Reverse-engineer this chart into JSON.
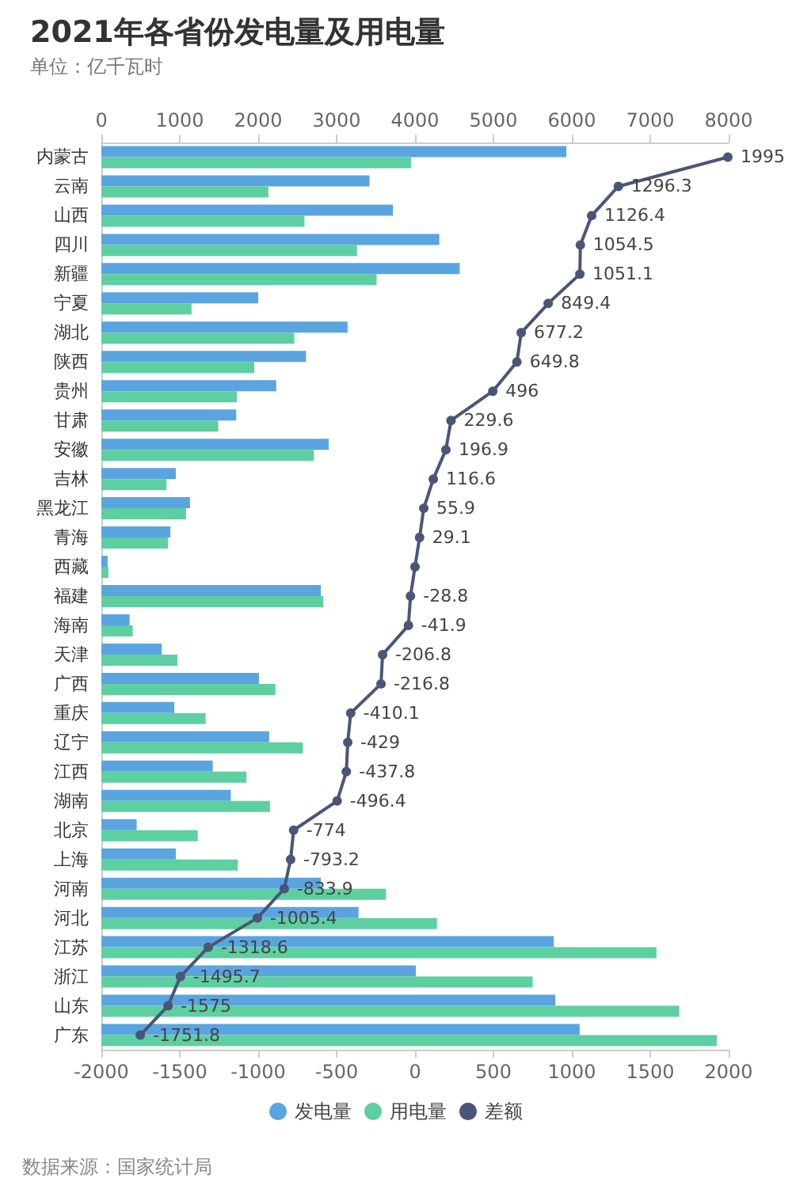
{
  "chart_data": {
    "type": "bar",
    "orientation": "horizontal",
    "title": "2021年各省份发电量及用电量",
    "subtitle": "单位：亿千瓦时",
    "annotations": [
      "数据来源：国家统计局"
    ],
    "categories": [
      "内蒙古",
      "云南",
      "山西",
      "四川",
      "新疆",
      "宁夏",
      "湖北",
      "陕西",
      "贵州",
      "甘肃",
      "安徽",
      "吉林",
      "黑龙江",
      "青海",
      "西藏",
      "福建",
      "海南",
      "天津",
      "广西",
      "重庆",
      "辽宁",
      "江西",
      "湖南",
      "北京",
      "上海",
      "河南",
      "河北",
      "江苏",
      "浙江",
      "山东",
      "广东"
    ],
    "series": [
      {
        "name": "发电量",
        "color": "#5aa5e0",
        "axis": "x2",
        "values": [
          5930,
          3420,
          3720,
          4310,
          4570,
          2000,
          3140,
          2610,
          2230,
          1720,
          2900,
          950,
          1130,
          880,
          80,
          2800,
          360,
          770,
          2010,
          930,
          2140,
          1420,
          1650,
          450,
          950,
          2800,
          3280,
          5770,
          4010,
          5790,
          6100
        ]
      },
      {
        "name": "用电量",
        "color": "#5ecfa0",
        "axis": "x2",
        "values": [
          3950,
          2130,
          2590,
          3260,
          3510,
          1150,
          2460,
          1950,
          1730,
          1490,
          2710,
          830,
          1080,
          850,
          90,
          2830,
          400,
          970,
          2220,
          1330,
          2570,
          1850,
          2150,
          1230,
          1740,
          3630,
          4280,
          7080,
          5500,
          7370,
          7850
        ]
      },
      {
        "name": "差额",
        "color": "#4b5577",
        "type": "line",
        "marker": "circle",
        "line_style": "solid",
        "values": [
          1995,
          1296.3,
          1126.4,
          1054.5,
          1051.1,
          849.4,
          677.2,
          649.8,
          496,
          229.6,
          196.9,
          116.6,
          55.9,
          29.1,
          0,
          -28.8,
          -41.9,
          -206.8,
          -216.8,
          -410.1,
          -429,
          -437.8,
          -496.4,
          -774,
          -793.2,
          -833.9,
          -1005.4,
          -1318.6,
          -1495.7,
          -1575,
          -1751.8
        ],
        "value_labels": [
          "1995",
          "1296.3",
          "1126.4",
          "1054.5",
          "1051.1",
          "849.4",
          "677.2",
          "649.8",
          "496",
          "229.6",
          "196.9",
          "116.6",
          "55.9",
          "29.1",
          null,
          "-28.8",
          "-41.9",
          "-206.8",
          "-216.8",
          "-410.1",
          "-429",
          "-437.8",
          "-496.4",
          "-774",
          "-793.2",
          "-833.9",
          "-1005.4",
          "-1318.6",
          "-1495.7",
          "-1575",
          "-1751.8"
        ]
      }
    ],
    "xlim": [
      -2000,
      2000
    ],
    "xticks": [
      -2000,
      -1500,
      -1000,
      -500,
      0,
      500,
      1000,
      1500,
      2000
    ],
    "x2lim": [
      0,
      8000
    ],
    "x2ticks": [
      0,
      1000,
      2000,
      3000,
      4000,
      5000,
      6000,
      7000,
      8000
    ],
    "legend": "bottom",
    "grid": false
  }
}
